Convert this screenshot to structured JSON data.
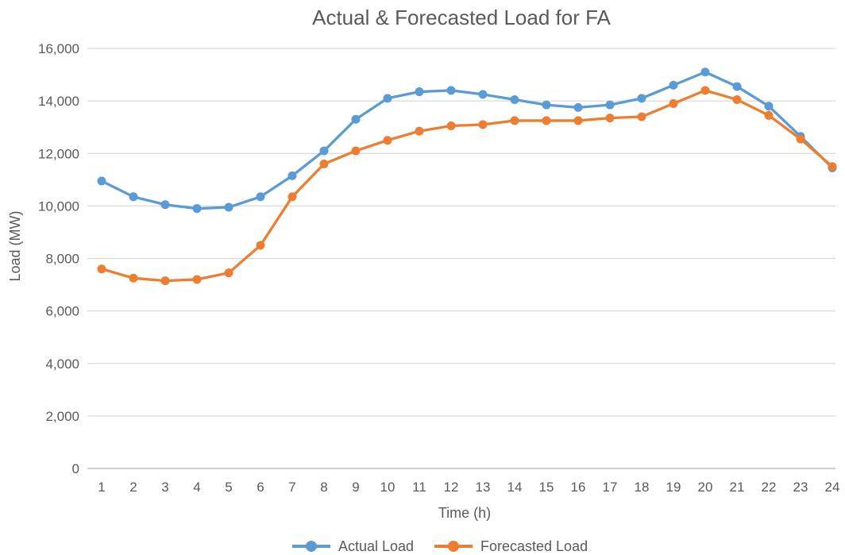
{
  "chart_data": {
    "type": "line",
    "title": "Actual & Forecasted Load for FA",
    "xlabel": "Time (h)",
    "ylabel": "Load (MW)",
    "categories": [
      1,
      2,
      3,
      4,
      5,
      6,
      7,
      8,
      9,
      10,
      11,
      12,
      13,
      14,
      15,
      16,
      17,
      18,
      19,
      20,
      21,
      22,
      23,
      24
    ],
    "series": [
      {
        "name": "Actual Load",
        "color": "#5B9BD5",
        "values": [
          10950,
          10350,
          10050,
          9900,
          9950,
          10350,
          11150,
          12100,
          13300,
          14100,
          14350,
          14400,
          14250,
          14050,
          13850,
          13750,
          13850,
          14100,
          14600,
          15100,
          14550,
          13800,
          12650,
          11450
        ]
      },
      {
        "name": "Forecasted Load",
        "color": "#ED7D31",
        "values": [
          7600,
          7250,
          7150,
          7200,
          7450,
          8500,
          10350,
          11600,
          12100,
          12500,
          12850,
          13050,
          13100,
          13250,
          13250,
          13250,
          13350,
          13400,
          13900,
          14400,
          14050,
          13450,
          12550,
          11500
        ]
      }
    ],
    "ylim": [
      0,
      16000
    ],
    "ytick_step": 2000,
    "ytick_labels": [
      "0",
      "2,000",
      "4,000",
      "6,000",
      "8,000",
      "10,000",
      "12,000",
      "14,000",
      "16,000"
    ],
    "grid": true,
    "legend_position": "bottom"
  },
  "styles": {
    "text_color": "#595959",
    "gridline_color": "#D9D9D9",
    "axis_line_color": "#BFBFBF",
    "background": "#FFFFFF"
  }
}
